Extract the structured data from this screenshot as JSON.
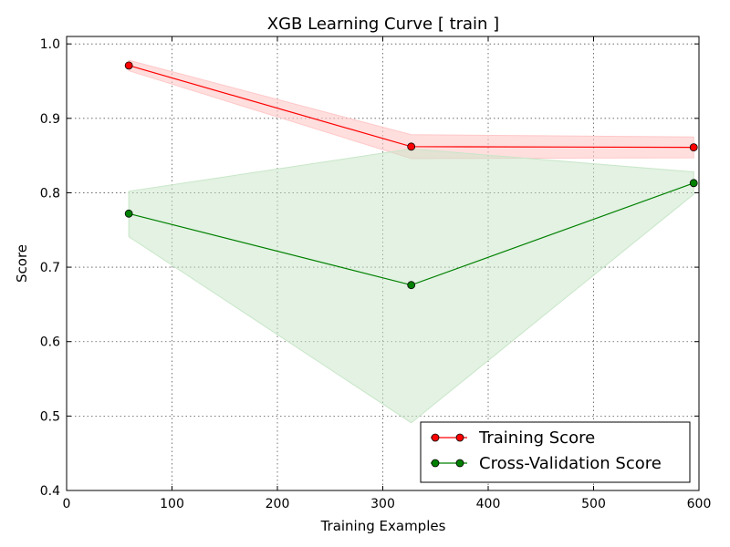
{
  "chart_data": {
    "type": "line",
    "title": "XGB Learning Curve [ train ]",
    "xlabel": "Training Examples",
    "ylabel": "Score",
    "xlim": [
      0,
      600
    ],
    "ylim": [
      0.4,
      1.01
    ],
    "xticks": [
      0,
      100,
      200,
      300,
      400,
      500,
      600
    ],
    "yticks": [
      0.4,
      0.5,
      0.6,
      0.7,
      0.8,
      0.9,
      1.0
    ],
    "xtick_labels": [
      "0",
      "100",
      "200",
      "300",
      "400",
      "500",
      "600"
    ],
    "ytick_labels": [
      "0.4",
      "0.5",
      "0.6",
      "0.7",
      "0.8",
      "0.9",
      "1.0"
    ],
    "grid": true,
    "legend_position": "bottom-right",
    "x": [
      59,
      327,
      595
    ],
    "series": [
      {
        "name": "Training Score",
        "color": "#ff0000",
        "band_color": "#ffc8c8",
        "values": [
          0.971,
          0.862,
          0.861
        ],
        "upper": [
          0.978,
          0.878,
          0.875
        ],
        "lower": [
          0.964,
          0.846,
          0.847
        ]
      },
      {
        "name": "Cross-Validation Score",
        "color": "#008000",
        "band_color": "#c8e6c8",
        "values": [
          0.772,
          0.676,
          0.813
        ],
        "upper": [
          0.802,
          0.859,
          0.828
        ],
        "lower": [
          0.741,
          0.491,
          0.798
        ]
      }
    ]
  }
}
